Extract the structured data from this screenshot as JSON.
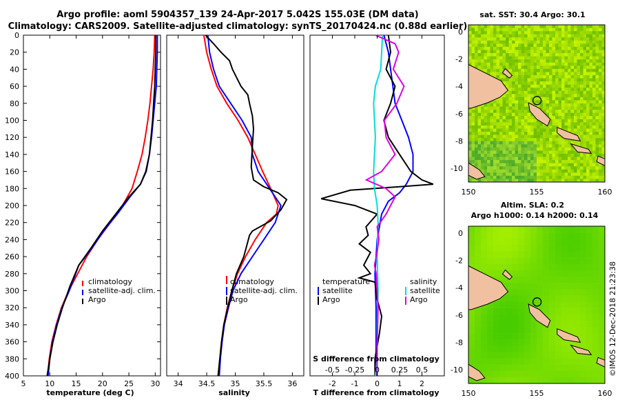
{
  "title_line1": "Argo profile: aoml 5904357_139 24-Apr-2017 5.042S 155.03E (DM data)",
  "title_line2": "Climatology: CARS2009. Satellite-adjusted climatology: synTS_20170424.nc (0.88d earlier)",
  "footer": "©IMOS 12-Dec-2018 21:23:38",
  "colors": {
    "climatology": "#ff0000",
    "satellite": "#0000ff",
    "argo": "#000000",
    "s_satellite": "#00dddd",
    "s_argo": "#dd00dd"
  },
  "chart_data": [
    {
      "type": "line",
      "id": "temperature",
      "xlabel": "temperature (deg C)",
      "ylabel": "",
      "xlim": [
        5,
        31
      ],
      "ylim": [
        400,
        0
      ],
      "xticks": [
        5,
        10,
        15,
        20,
        25,
        30
      ],
      "xtick_labels": [
        "5",
        "10",
        "15",
        "20",
        "25",
        "30"
      ],
      "yticks": [
        0,
        20,
        40,
        60,
        80,
        100,
        120,
        140,
        160,
        180,
        200,
        220,
        240,
        260,
        280,
        300,
        320,
        340,
        360,
        380,
        400
      ],
      "legend": [
        "climatology",
        "satellite-adj. clim.",
        "Argo"
      ],
      "series": [
        {
          "name": "climatology",
          "color": "red",
          "points": [
            [
              29.9,
              0
            ],
            [
              29.8,
              20
            ],
            [
              29.6,
              40
            ],
            [
              29.3,
              60
            ],
            [
              29.0,
              80
            ],
            [
              28.6,
              100
            ],
            [
              28.1,
              120
            ],
            [
              27.5,
              140
            ],
            [
              26.6,
              160
            ],
            [
              25.6,
              180
            ],
            [
              23.8,
              200
            ],
            [
              21.5,
              220
            ],
            [
              19.1,
              240
            ],
            [
              17.0,
              260
            ],
            [
              15.3,
              280
            ],
            [
              13.6,
              300
            ],
            [
              12.2,
              320
            ],
            [
              11.2,
              340
            ],
            [
              10.4,
              360
            ],
            [
              9.9,
              380
            ],
            [
              9.6,
              400
            ]
          ]
        },
        {
          "name": "satellite-adj. clim.",
          "color": "blue",
          "points": [
            [
              30.4,
              0
            ],
            [
              30.4,
              20
            ],
            [
              30.3,
              40
            ],
            [
              30.2,
              60
            ],
            [
              29.9,
              80
            ],
            [
              29.6,
              100
            ],
            [
              29.3,
              120
            ],
            [
              28.9,
              140
            ],
            [
              28.3,
              160
            ],
            [
              27.2,
              175
            ],
            [
              25.2,
              190
            ],
            [
              22.8,
              210
            ],
            [
              20.2,
              230
            ],
            [
              18.0,
              250
            ],
            [
              15.5,
              270
            ],
            [
              13.7,
              300
            ],
            [
              12.3,
              320
            ],
            [
              11.3,
              340
            ],
            [
              10.5,
              360
            ],
            [
              10.0,
              380
            ],
            [
              9.7,
              400
            ]
          ]
        },
        {
          "name": "Argo",
          "color": "black",
          "points": [
            [
              30.1,
              0
            ],
            [
              30.1,
              20
            ],
            [
              30.0,
              40
            ],
            [
              29.9,
              60
            ],
            [
              29.7,
              80
            ],
            [
              29.5,
              100
            ],
            [
              29.2,
              120
            ],
            [
              28.9,
              140
            ],
            [
              28.2,
              160
            ],
            [
              27.2,
              175
            ],
            [
              25.0,
              190
            ],
            [
              22.5,
              210
            ],
            [
              20.0,
              230
            ],
            [
              17.8,
              250
            ],
            [
              15.5,
              270
            ],
            [
              13.8,
              295
            ],
            [
              12.4,
              320
            ],
            [
              11.4,
              340
            ],
            [
              10.6,
              360
            ],
            [
              10.0,
              380
            ],
            [
              9.5,
              400
            ]
          ]
        }
      ]
    },
    {
      "type": "line",
      "id": "salinity",
      "xlabel": "salinity",
      "ylabel": "",
      "xlim": [
        33.8,
        36.2
      ],
      "ylim": [
        400,
        0
      ],
      "xticks": [
        34,
        34.5,
        35,
        35.5,
        36
      ],
      "xtick_labels": [
        "34",
        "34.5",
        "35",
        "35.5",
        "36"
      ],
      "legend": [
        "climatology",
        "satellite-adj. clim.",
        "Argo"
      ],
      "series": [
        {
          "name": "climatology",
          "color": "red",
          "points": [
            [
              34.45,
              0
            ],
            [
              34.5,
              20
            ],
            [
              34.58,
              40
            ],
            [
              34.68,
              60
            ],
            [
              34.85,
              80
            ],
            [
              35.05,
              100
            ],
            [
              35.22,
              120
            ],
            [
              35.35,
              140
            ],
            [
              35.48,
              160
            ],
            [
              35.62,
              180
            ],
            [
              35.75,
              200
            ],
            [
              35.72,
              210
            ],
            [
              35.55,
              220
            ],
            [
              35.35,
              240
            ],
            [
              35.18,
              260
            ],
            [
              35.04,
              280
            ],
            [
              34.94,
              300
            ],
            [
              34.86,
              320
            ],
            [
              34.8,
              340
            ],
            [
              34.76,
              360
            ],
            [
              34.73,
              380
            ],
            [
              34.7,
              400
            ]
          ]
        },
        {
          "name": "satellite-adj. clim.",
          "color": "blue",
          "points": [
            [
              34.52,
              0
            ],
            [
              34.55,
              20
            ],
            [
              34.62,
              40
            ],
            [
              34.72,
              60
            ],
            [
              34.92,
              80
            ],
            [
              35.12,
              100
            ],
            [
              35.28,
              120
            ],
            [
              35.3,
              140
            ],
            [
              35.4,
              160
            ],
            [
              35.6,
              180
            ],
            [
              35.8,
              200
            ],
            [
              35.7,
              220
            ],
            [
              35.5,
              240
            ],
            [
              35.3,
              260
            ],
            [
              35.1,
              280
            ],
            [
              34.96,
              300
            ],
            [
              34.88,
              320
            ],
            [
              34.81,
              340
            ],
            [
              34.77,
              360
            ],
            [
              34.74,
              380
            ],
            [
              34.72,
              400
            ]
          ]
        },
        {
          "name": "Argo",
          "color": "black",
          "points": [
            [
              34.48,
              0
            ],
            [
              34.55,
              5
            ],
            [
              34.62,
              10
            ],
            [
              34.75,
              20
            ],
            [
              34.9,
              30
            ],
            [
              34.95,
              40
            ],
            [
              35.1,
              60
            ],
            [
              35.22,
              70
            ],
            [
              35.25,
              80
            ],
            [
              35.3,
              95
            ],
            [
              35.32,
              110
            ],
            [
              35.3,
              130
            ],
            [
              35.28,
              155
            ],
            [
              35.32,
              170
            ],
            [
              35.5,
              178
            ],
            [
              35.75,
              185
            ],
            [
              35.9,
              193
            ],
            [
              35.8,
              205
            ],
            [
              35.62,
              218
            ],
            [
              35.3,
              230
            ],
            [
              35.25,
              235
            ],
            [
              35.15,
              260
            ],
            [
              35.02,
              280
            ],
            [
              34.94,
              300
            ],
            [
              34.87,
              320
            ],
            [
              34.8,
              340
            ],
            [
              34.76,
              360
            ],
            [
              34.73,
              380
            ],
            [
              34.7,
              400
            ]
          ]
        }
      ]
    },
    {
      "type": "line",
      "id": "difference",
      "xlabel": "T difference from climatology",
      "ylabel": "",
      "title_inner": "S difference from climatology",
      "xlim": [
        -3,
        3
      ],
      "ylim": [
        400,
        0
      ],
      "xticks": [
        -2,
        -1,
        0,
        1,
        2
      ],
      "xtick_labels": [
        "-2",
        "-1",
        "0",
        "1",
        "2"
      ],
      "s_xticks": [
        -0.5,
        -0.25,
        0,
        0.25,
        0.5
      ],
      "s_xtick_labels": [
        "-0.5",
        "-0.25",
        "0",
        "0.25",
        "0.5"
      ],
      "legend_t_title": "temperature",
      "legend_s_title": "salinity",
      "legend_t": [
        "satellite",
        "Argo"
      ],
      "legend_s": [
        "satellite",
        "Argo"
      ],
      "series": [
        {
          "name": "T satellite",
          "color": "blue",
          "points": [
            [
              0.3,
              0
            ],
            [
              0.5,
              20
            ],
            [
              0.6,
              40
            ],
            [
              0.7,
              60
            ],
            [
              0.8,
              80
            ],
            [
              1.1,
              100
            ],
            [
              1.4,
              120
            ],
            [
              1.6,
              140
            ],
            [
              1.6,
              160
            ],
            [
              1.3,
              175
            ],
            [
              1.0,
              185
            ],
            [
              0.5,
              195
            ],
            [
              0.2,
              210
            ],
            [
              0,
              240
            ],
            [
              -0.1,
              280
            ],
            [
              -0.05,
              320
            ],
            [
              -0.05,
              360
            ],
            [
              -0.05,
              400
            ]
          ]
        },
        {
          "name": "T Argo",
          "color": "black",
          "points": [
            [
              0.5,
              0
            ],
            [
              0.6,
              20
            ],
            [
              0.4,
              40
            ],
            [
              0.8,
              60
            ],
            [
              0.6,
              80
            ],
            [
              0.3,
              100
            ],
            [
              0.5,
              120
            ],
            [
              1.0,
              140
            ],
            [
              1.5,
              160
            ],
            [
              2.0,
              170
            ],
            [
              2.5,
              175
            ],
            [
              1.0,
              178
            ],
            [
              -1.2,
              182
            ],
            [
              -2.5,
              192
            ],
            [
              -1.0,
              200
            ],
            [
              0.0,
              210
            ],
            [
              -0.5,
              225
            ],
            [
              -0.4,
              235
            ],
            [
              -0.8,
              245
            ],
            [
              -0.3,
              255
            ],
            [
              -0.6,
              270
            ],
            [
              -0.3,
              280
            ],
            [
              -0.8,
              285
            ],
            [
              -0.1,
              290
            ],
            [
              0.0,
              310
            ],
            [
              0.2,
              330
            ],
            [
              0.1,
              350
            ],
            [
              -0.1,
              380
            ],
            [
              -0.1,
              400
            ]
          ]
        },
        {
          "name": "S satellite",
          "color": "cyan",
          "points": [
            [
              0.06,
              0
            ],
            [
              0.05,
              20
            ],
            [
              0.04,
              40
            ],
            [
              -0.02,
              60
            ],
            [
              -0.04,
              80
            ],
            [
              -0.03,
              100
            ],
            [
              -0.02,
              120
            ],
            [
              -0.03,
              140
            ],
            [
              -0.04,
              160
            ],
            [
              -0.03,
              180
            ],
            [
              0.0,
              200
            ],
            [
              0.01,
              220
            ],
            [
              0.0,
              260
            ],
            [
              0.01,
              300
            ],
            [
              0.0,
              340
            ],
            [
              0.0,
              380
            ],
            [
              -0.02,
              400
            ]
          ]
        },
        {
          "name": "S Argo",
          "color": "magenta",
          "points": [
            [
              -0.02,
              0
            ],
            [
              0.2,
              10
            ],
            [
              0.24,
              20
            ],
            [
              0.18,
              40
            ],
            [
              0.3,
              60
            ],
            [
              0.22,
              80
            ],
            [
              0.08,
              100
            ],
            [
              0.1,
              120
            ],
            [
              0.2,
              140
            ],
            [
              0.05,
              160
            ],
            [
              -0.12,
              170
            ],
            [
              0.1,
              180
            ],
            [
              0.2,
              190
            ],
            [
              0.15,
              200
            ],
            [
              0.1,
              210
            ],
            [
              0.0,
              225
            ],
            [
              0.02,
              240
            ],
            [
              -0.01,
              260
            ],
            [
              -0.03,
              270
            ],
            [
              -0.01,
              280
            ],
            [
              0.0,
              300
            ],
            [
              0.01,
              320
            ],
            [
              0.0,
              360
            ],
            [
              0.0,
              400
            ]
          ]
        }
      ]
    },
    {
      "type": "heatmap",
      "id": "sst_map",
      "title": "sat. SST: 30.4 Argo: 30.1",
      "xlim": [
        150,
        160
      ],
      "ylim": [
        -11,
        0.5
      ],
      "xticks": [
        150,
        155,
        160
      ],
      "xtick_labels": [
        "150",
        "155",
        "160"
      ],
      "yticks": [
        0,
        -2,
        -4,
        -6,
        -8,
        -10
      ],
      "ytick_labels": [
        "0",
        "-2",
        "-4",
        "-6",
        "-8",
        "-10"
      ],
      "marker": [
        155.03,
        -5.04
      ]
    },
    {
      "type": "heatmap",
      "id": "sla_map",
      "title": "Altim. SLA: 0.2",
      "subtitle": "Argo h1000: 0.14 h2000: 0.14",
      "xlim": [
        150,
        160
      ],
      "ylim": [
        -11,
        0.5
      ],
      "xticks": [
        150,
        155,
        160
      ],
      "xtick_labels": [
        "150",
        "155",
        "160"
      ],
      "yticks": [
        0,
        -2,
        -4,
        -6,
        -8,
        -10
      ],
      "ytick_labels": [
        "0",
        "-2",
        "-4",
        "-6",
        "-8",
        "-10"
      ],
      "marker": [
        155.03,
        -5.04
      ]
    }
  ]
}
